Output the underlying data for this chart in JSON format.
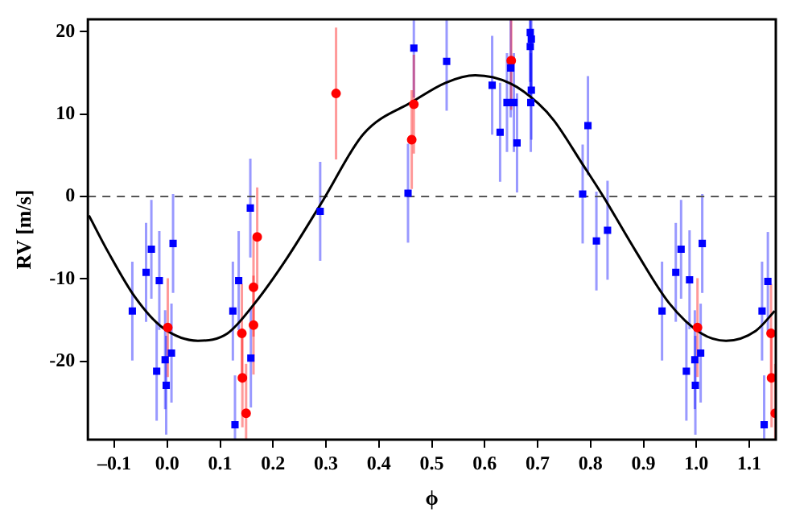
{
  "chart_data": {
    "type": "scatter",
    "xlabel": "ϕ",
    "ylabel": "RV [m/s]",
    "xlim": [
      -0.15,
      1.15
    ],
    "ylim": [
      -29.5,
      21.5
    ],
    "xticks": [
      {
        "value": -0.1,
        "label": "–0.1"
      },
      {
        "value": 0,
        "label": "0.0"
      },
      0.1,
      0.2,
      0.3,
      0.4,
      0.5,
      0.6,
      0.7,
      0.8,
      0.9,
      {
        "value": 1,
        "label": "1.0"
      },
      1.1
    ],
    "yticks": [
      -20,
      -10,
      0,
      10,
      20
    ],
    "grid": false,
    "legend": false,
    "marker": "square",
    "ref_lines": [
      {
        "axis": "y",
        "value": 0,
        "color": "#555555",
        "line_style": "dashed"
      }
    ],
    "series": [
      {
        "type": "line",
        "color": "#000000",
        "marker": "none",
        "x": [
          -0.148,
          -0.112,
          -0.061,
          -0.009,
          0.058,
          0.114,
          0.166,
          0.227,
          0.294,
          0.371,
          0.466,
          0.526,
          0.582,
          0.649,
          0.701,
          0.731,
          0.783,
          0.824,
          0.886,
          0.948,
          1.009,
          1.056,
          1.112,
          1.148
        ],
        "values": [
          -2.3,
          -6.7,
          -12.2,
          -15.9,
          -17.5,
          -16.6,
          -12.9,
          -7.4,
          -0.5,
          7.6,
          11.6,
          13.8,
          14.7,
          13.7,
          11.3,
          9.2,
          4.1,
          0,
          -6.7,
          -12.9,
          -16.6,
          -17.5,
          -16.3,
          -13.9
        ]
      },
      {
        "color": "#0000ff",
        "x": [
          -0.066,
          -0.04,
          -0.03,
          -0.02,
          -0.015,
          -0.004,
          -0.002,
          0.008,
          0.011,
          0.124,
          0.128,
          0.135,
          0.157,
          0.158,
          0.289,
          0.455,
          0.466,
          0.528,
          0.614,
          0.629,
          0.642,
          0.649,
          0.655,
          0.661,
          0.686,
          0.688,
          0.686,
          0.688,
          0.687,
          0.785,
          0.795,
          0.811,
          0.832,
          0.935,
          0.961,
          0.971,
          0.981,
          0.987,
          0.997,
          0.998,
          1.008,
          1.011,
          1.124,
          1.128,
          1.135
        ],
        "values": [
          -13.9,
          -9.2,
          -6.4,
          -21.2,
          -10.2,
          -19.8,
          -22.9,
          -19.0,
          -5.7,
          -13.9,
          -27.7,
          -10.2,
          -1.4,
          -19.6,
          -1.8,
          0.4,
          18.0,
          16.4,
          13.5,
          7.8,
          11.4,
          15.6,
          11.4,
          6.5,
          19.9,
          19.1,
          18.2,
          12.9,
          11.4,
          0.3,
          8.6,
          -5.4,
          -4.1,
          -13.9,
          -9.2,
          -6.4,
          -21.2,
          -10.1,
          -19.8,
          -22.9,
          -19.0,
          -5.7,
          -13.9,
          -27.7,
          -10.3
        ],
        "errors": [
          6,
          6,
          6,
          6,
          6,
          6,
          6,
          6,
          6,
          6,
          [
            -29.5,
            -21.7
          ],
          6,
          6,
          6,
          6,
          6,
          [
            12,
            21.5
          ],
          [
            10.4,
            21.5
          ],
          6,
          6,
          6,
          [
            9.6,
            21.5
          ],
          6,
          6,
          [
            13.9,
            21.5
          ],
          [
            13.1,
            21.5
          ],
          [
            12.2,
            21.5
          ],
          6,
          6,
          6,
          6,
          6,
          6,
          6,
          6,
          6,
          6,
          6,
          6,
          6,
          6,
          6,
          6,
          [
            -29.5,
            -21.7
          ],
          6
        ]
      },
      {
        "color": "#ff0000",
        "marker": "circle",
        "x": [
          0.001,
          0.141,
          0.142,
          0.149,
          0.163,
          0.163,
          0.17,
          0.319,
          0.462,
          0.466,
          0.65,
          1.002,
          1.141,
          1.142,
          1.149
        ],
        "values": [
          -15.9,
          -16.6,
          -22.0,
          -26.3,
          -11.0,
          -15.6,
          -4.9,
          12.5,
          6.9,
          11.2,
          16.5,
          -15.9,
          -16.6,
          -22.0,
          -26.3
        ],
        "errors": [
          6,
          6,
          6,
          [
            -29.5,
            -20.3
          ],
          6,
          6,
          6,
          8,
          6,
          6,
          [
            10.5,
            21.5
          ],
          6,
          6,
          6,
          [
            -29.5,
            -20.3
          ]
        ]
      }
    ]
  }
}
